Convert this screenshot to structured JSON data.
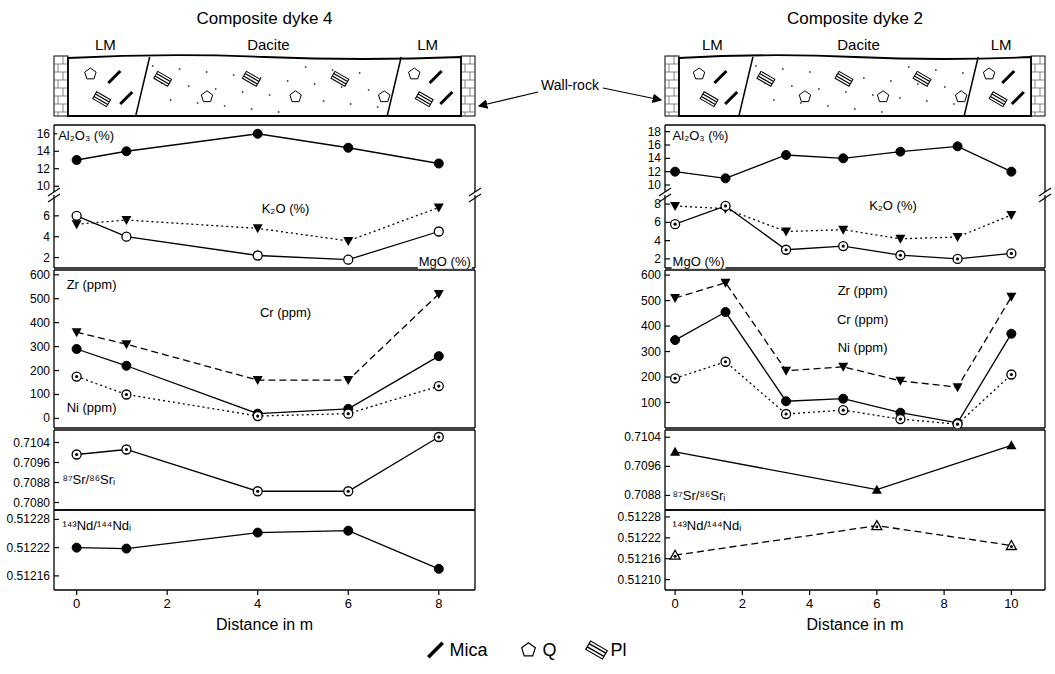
{
  "wall_rock_label": "Wall-rock",
  "legend_items": [
    {
      "name": "Mica",
      "marker": "mica"
    },
    {
      "name": "Q",
      "marker": "pentagon"
    },
    {
      "name": "Pl",
      "marker": "plagioclase"
    }
  ],
  "chart_data": [
    {
      "type": "line",
      "title": "Composite dyke 4",
      "sketch_labels": [
        "LM",
        "Dacite",
        "LM"
      ],
      "xlabel": "Distance in m",
      "xlim": [
        -0.5,
        8.8
      ],
      "xticks": [
        0,
        2,
        4,
        6,
        8
      ],
      "panels": [
        {
          "ylim": [
            9,
            17
          ],
          "yticks": [
            10,
            12,
            14,
            16
          ],
          "series": [
            {
              "name": "Al₂O₃ (%)",
              "color": "#000000",
              "marker": "filled-circle",
              "line_style": "solid",
              "x": [
                0,
                1.1,
                4,
                6,
                8
              ],
              "values": [
                13,
                14,
                16,
                14.4,
                12.6
              ]
            }
          ]
        },
        {
          "ylim": [
            1,
            8
          ],
          "yticks": [
            2,
            4,
            6
          ],
          "series": [
            {
              "name": "K₂O (%)",
              "color": "#000000",
              "marker": "filled-triangle-down",
              "line_style": "dotted",
              "x": [
                0,
                1.1,
                4,
                6,
                8
              ],
              "values": [
                5.2,
                5.6,
                4.8,
                3.6,
                6.8
              ]
            },
            {
              "name": "MgO (%)",
              "color": "#000000",
              "marker": "open-circle",
              "line_style": "solid",
              "x": [
                0,
                1.1,
                4,
                6,
                8
              ],
              "values": [
                6,
                4,
                2.2,
                1.8,
                4.5
              ]
            }
          ]
        },
        {
          "ylim": [
            -40,
            620
          ],
          "yticks": [
            0,
            100,
            200,
            300,
            400,
            500,
            600
          ],
          "series": [
            {
              "name": "Zr (ppm)",
              "color": "#000000",
              "marker": "filled-triangle-down",
              "line_style": "dashed",
              "x": [
                0,
                1.1,
                4,
                6,
                8
              ],
              "values": [
                360,
                310,
                160,
                160,
                520
              ]
            },
            {
              "name": "Cr (ppm)",
              "color": "#000000",
              "marker": "filled-circle",
              "line_style": "solid",
              "x": [
                0,
                1.1,
                4,
                6,
                8
              ],
              "values": [
                290,
                220,
                20,
                40,
                260
              ]
            },
            {
              "name": "Ni (ppm)",
              "color": "#000000",
              "marker": "dotted-circle",
              "line_style": "dotted",
              "x": [
                0,
                1.1,
                4,
                6,
                8
              ],
              "values": [
                175,
                100,
                10,
                20,
                135
              ]
            }
          ]
        },
        {
          "ylim": [
            0.7077,
            0.7109
          ],
          "yticks": [
            {
              "value": 0.708,
              "label": "0.7080"
            },
            0.7088,
            0.7096,
            0.7104
          ],
          "series": [
            {
              "name": "⁸⁷Sr/⁸⁶Srᵢ",
              "color": "#000000",
              "marker": "dotted-circle",
              "line_style": "solid",
              "x": [
                0,
                1.1,
                4,
                6,
                8
              ],
              "values": [
                0.70992,
                0.71012,
                0.70845,
                0.70845,
                0.71062
              ]
            }
          ]
        },
        {
          "ylim": [
            0.51213,
            0.5123
          ],
          "yticks": [
            0.51216,
            0.51222,
            0.51228
          ],
          "series": [
            {
              "name": "¹⁴³Nd/¹⁴⁴Ndᵢ",
              "color": "#000000",
              "marker": "filled-circle",
              "line_style": "solid",
              "x": [
                0,
                1.1,
                4,
                6,
                8
              ],
              "values": [
                0.51222,
                0.512218,
                0.512252,
                0.512256,
                0.512175
              ]
            }
          ]
        }
      ]
    },
    {
      "type": "line",
      "title": "Composite dyke 2",
      "sketch_labels": [
        "LM",
        "Dacite",
        "LM"
      ],
      "xlabel": "Distance in m",
      "xlim": [
        -0.3,
        11
      ],
      "xticks": [
        0,
        2,
        4,
        6,
        8,
        10
      ],
      "panels": [
        {
          "ylim": [
            8.5,
            19
          ],
          "yticks": [
            10,
            12,
            14,
            16,
            18
          ],
          "series": [
            {
              "name": "Al₂O₃ (%)",
              "color": "#000000",
              "marker": "filled-circle",
              "line_style": "solid",
              "x": [
                0,
                1.5,
                3.3,
                5,
                6.7,
                8.4,
                10
              ],
              "values": [
                12,
                11,
                14.5,
                14,
                15,
                15.8,
                12
              ]
            }
          ]
        },
        {
          "ylim": [
            1,
            9
          ],
          "yticks": [
            2,
            4,
            6,
            8
          ],
          "series": [
            {
              "name": "K₂O (%)",
              "color": "#000000",
              "marker": "filled-triangle-down",
              "line_style": "dotted",
              "x": [
                0,
                1.5,
                3.3,
                5,
                6.7,
                8.4,
                10
              ],
              "values": [
                7.8,
                7.5,
                5,
                5.2,
                4.2,
                4.4,
                6.8
              ]
            },
            {
              "name": "MgO (%)",
              "color": "#000000",
              "marker": "dotted-circle",
              "line_style": "solid",
              "x": [
                0,
                1.5,
                3.3,
                5,
                6.7,
                8.4,
                10
              ],
              "values": [
                5.8,
                7.8,
                3,
                3.4,
                2.4,
                2,
                2.6
              ]
            }
          ]
        },
        {
          "ylim": [
            0,
            620
          ],
          "yticks": [
            100,
            200,
            300,
            400,
            500,
            600
          ],
          "series": [
            {
              "name": "Zr (ppm)",
              "color": "#000000",
              "marker": "filled-triangle-down",
              "line_style": "dashed",
              "x": [
                0,
                1.5,
                3.3,
                5,
                6.7,
                8.4,
                10
              ],
              "values": [
                510,
                570,
                225,
                240,
                185,
                160,
                515
              ]
            },
            {
              "name": "Cr (ppm)",
              "color": "#000000",
              "marker": "filled-circle",
              "line_style": "solid",
              "x": [
                0,
                1.5,
                3.3,
                5,
                6.7,
                8.4,
                10
              ],
              "values": [
                345,
                455,
                105,
                115,
                60,
                20,
                370
              ]
            },
            {
              "name": "Ni (ppm)",
              "color": "#000000",
              "marker": "dotted-circle",
              "line_style": "dotted",
              "x": [
                0,
                1.5,
                3.3,
                5,
                6.7,
                8.4,
                10
              ],
              "values": [
                195,
                260,
                55,
                70,
                35,
                15,
                210
              ]
            }
          ]
        },
        {
          "ylim": [
            0.7084,
            0.7106
          ],
          "yticks": [
            0.7088,
            0.7096,
            0.7104
          ],
          "series": [
            {
              "name": "⁸⁷Sr/⁸⁶Srᵢ",
              "color": "#000000",
              "marker": "filled-triangle-up",
              "line_style": "solid",
              "x": [
                0,
                6,
                10
              ],
              "values": [
                0.71,
                0.70896,
                0.71018
              ]
            }
          ]
        },
        {
          "ylim": [
            0.51207,
            0.5123
          ],
          "yticks": [
            {
              "value": 0.5121,
              "label": "0.51210"
            },
            0.51216,
            0.51222,
            0.51228
          ],
          "series": [
            {
              "name": "¹⁴³Nd/¹⁴⁴Ndᵢ",
              "color": "#000000",
              "marker": "dotted-triangle",
              "line_style": "dashed",
              "x": [
                0,
                6,
                10
              ],
              "values": [
                0.51217,
                0.512255,
                0.512198
              ]
            }
          ]
        }
      ]
    }
  ]
}
